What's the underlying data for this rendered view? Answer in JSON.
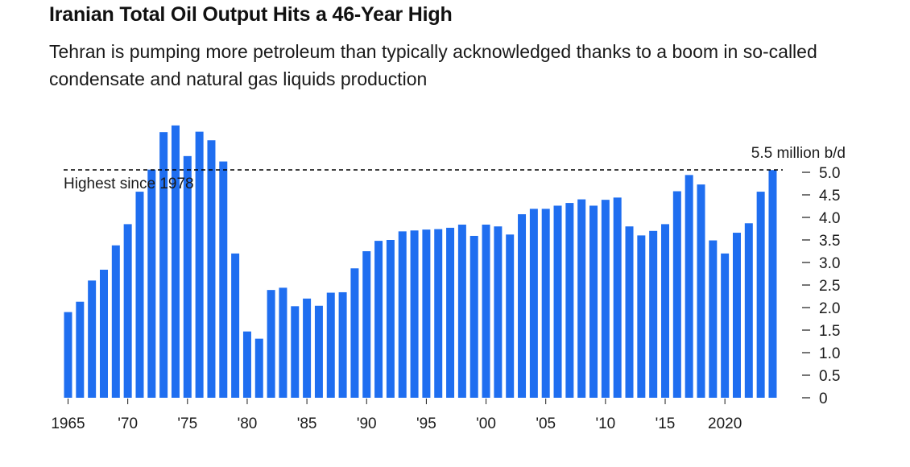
{
  "title": "Iranian Total Oil Output Hits a 46-Year High",
  "subtitle": "Tehran is pumping more petroleum than typically acknowledged thanks to a boom in so-called condensate and natural gas liquids production",
  "colors": {
    "bar": "#1f6ef0",
    "text": "#1a1a1a",
    "reference_line": "#000000"
  },
  "chart_data": {
    "type": "bar",
    "x": [
      1965,
      1966,
      1967,
      1968,
      1969,
      1970,
      1971,
      1972,
      1973,
      1974,
      1975,
      1976,
      1977,
      1978,
      1979,
      1980,
      1981,
      1982,
      1983,
      1984,
      1985,
      1986,
      1987,
      1988,
      1989,
      1990,
      1991,
      1992,
      1993,
      1994,
      1995,
      1996,
      1997,
      1998,
      1999,
      2000,
      2001,
      2002,
      2003,
      2004,
      2005,
      2006,
      2007,
      2008,
      2009,
      2010,
      2011,
      2012,
      2013,
      2014,
      2015,
      2016,
      2017,
      2018,
      2019,
      2020,
      2021,
      2022,
      2023,
      2024
    ],
    "values": [
      1.9,
      2.13,
      2.6,
      2.84,
      3.38,
      3.85,
      4.57,
      5.06,
      5.89,
      6.04,
      5.36,
      5.9,
      5.71,
      5.24,
      3.2,
      1.47,
      1.31,
      2.39,
      2.44,
      2.03,
      2.2,
      2.04,
      2.33,
      2.34,
      2.87,
      3.25,
      3.48,
      3.5,
      3.69,
      3.71,
      3.73,
      3.74,
      3.77,
      3.84,
      3.59,
      3.84,
      3.8,
      3.62,
      4.07,
      4.19,
      4.19,
      4.26,
      4.32,
      4.4,
      4.26,
      4.39,
      4.44,
      3.8,
      3.6,
      3.7,
      3.85,
      4.58,
      4.94,
      4.73,
      3.49,
      3.2,
      3.66,
      3.87,
      4.57,
      5.05
    ],
    "x_tick_labels": [
      {
        "year": 1965,
        "label": "1965"
      },
      {
        "year": 1970,
        "label": "'70"
      },
      {
        "year": 1975,
        "label": "'75"
      },
      {
        "year": 1980,
        "label": "'80"
      },
      {
        "year": 1985,
        "label": "'85"
      },
      {
        "year": 1990,
        "label": "'90"
      },
      {
        "year": 1995,
        "label": "'95"
      },
      {
        "year": 2000,
        "label": "'00"
      },
      {
        "year": 2005,
        "label": "'05"
      },
      {
        "year": 2010,
        "label": "'10"
      },
      {
        "year": 2015,
        "label": "'15"
      },
      {
        "year": 2020,
        "label": "2020"
      }
    ],
    "y_ticks": [
      {
        "value": 0,
        "label": "0"
      },
      {
        "value": 0.5,
        "label": "0.5"
      },
      {
        "value": 1.0,
        "label": "1.0"
      },
      {
        "value": 1.5,
        "label": "1.5"
      },
      {
        "value": 2.0,
        "label": "2.0"
      },
      {
        "value": 2.5,
        "label": "2.5"
      },
      {
        "value": 3.0,
        "label": "3.0"
      },
      {
        "value": 3.5,
        "label": "3.5"
      },
      {
        "value": 4.0,
        "label": "4.0"
      },
      {
        "value": 4.5,
        "label": "4.5"
      },
      {
        "value": 5.0,
        "label": "5.0"
      }
    ],
    "y_unit_label": "5.5 million b/d",
    "ylim": [
      0,
      5.5
    ],
    "reference_line": {
      "value": 5.05,
      "label": "Highest since 1978",
      "style": "dashed"
    },
    "grid": false,
    "legend": "none",
    "y_axis_side": "right"
  }
}
